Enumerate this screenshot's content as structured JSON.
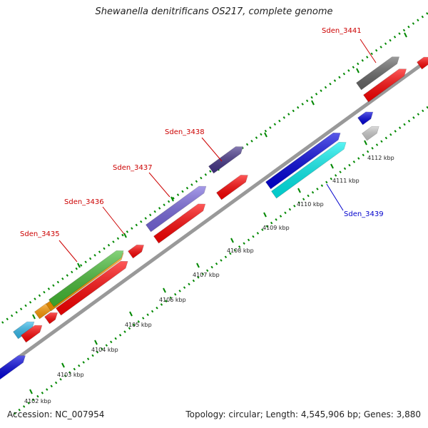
{
  "title": "Shewanella denitrificans OS217, complete genome",
  "footer": {
    "accession": "Accession: NC_007954",
    "summary": "Topology: circular; Length: 4,545,906 bp; Genes: 3,880"
  },
  "kbp_labels": [
    "4102 kbp",
    "4103 kbp",
    "4104 kbp",
    "4105 kbp",
    "4106 kbp",
    "4107 kbp",
    "4108 kbp",
    "4109 kbp",
    "4110 kbp",
    "4111 kbp",
    "4112 kbp"
  ],
  "gene_labels": [
    {
      "name": "Sden_3435",
      "color": "#cc0000"
    },
    {
      "name": "Sden_3436",
      "color": "#cc0000"
    },
    {
      "name": "Sden_3437",
      "color": "#cc0000"
    },
    {
      "name": "Sden_3438",
      "color": "#cc0000"
    },
    {
      "name": "Sden_3439",
      "color": "#0000cc"
    },
    {
      "name": "Sden_3441",
      "color": "#cc0000"
    }
  ],
  "colors": {
    "backbone": "#999999",
    "tick": "#008800",
    "cds": "#ff0000",
    "blue": "#0000dd",
    "cyan": "#00eeee",
    "sky": "#33bbee",
    "orange": "#ff9900",
    "green": "#44bb33",
    "violet": "#7766dd",
    "darkviolet": "#443388",
    "gray": "#666666",
    "lightgray": "#cccccc"
  }
}
